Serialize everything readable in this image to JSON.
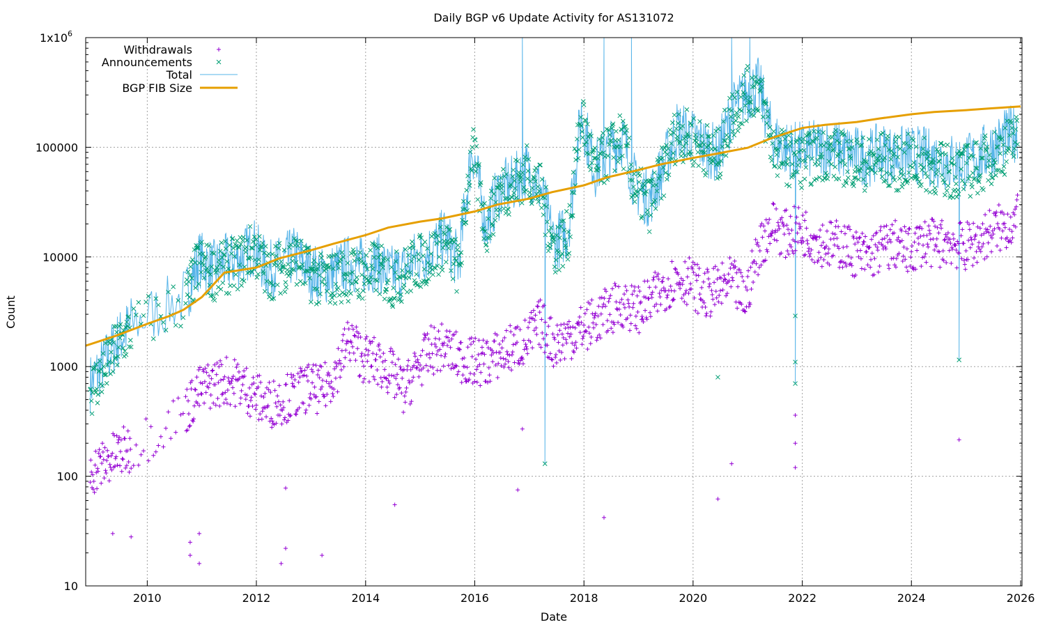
{
  "chart_data": {
    "type": "scatter",
    "title": "Daily BGP v6 Update Activity for AS131072",
    "xlabel": "Date",
    "ylabel": "Count",
    "y_scale": "log",
    "ylim": [
      10,
      1000000
    ],
    "xlim": [
      "2008-11-15",
      "2026-01-10"
    ],
    "grid": true,
    "legend_position": "top-left",
    "x_ticks": [
      "2010",
      "2012",
      "2014",
      "2016",
      "2018",
      "2020",
      "2022",
      "2024",
      "2026"
    ],
    "y_ticks": [
      {
        "value": 10,
        "label": "10"
      },
      {
        "value": 100,
        "label": "100"
      },
      {
        "value": 1000,
        "label": "1000"
      },
      {
        "value": 10000,
        "label": "10000"
      },
      {
        "value": 100000,
        "label": "100000"
      },
      {
        "value": 1000000,
        "label": "1x10",
        "sup": "6"
      }
    ],
    "series": [
      {
        "name": "Withdrawals",
        "style": "points-plus",
        "color": "#9400d3",
        "x": [
          "2008-12",
          "2009-03",
          "2009-06",
          "2009-09",
          "2010-09",
          "2010-12",
          "2011-03",
          "2011-06",
          "2011-09",
          "2011-12",
          "2012-03",
          "2012-06",
          "2012-09",
          "2012-12",
          "2013-03",
          "2013-06",
          "2013-09",
          "2013-12",
          "2014-03",
          "2014-06",
          "2014-09",
          "2014-12",
          "2015-03",
          "2015-06",
          "2015-09",
          "2015-12",
          "2016-03",
          "2016-06",
          "2016-09",
          "2016-12",
          "2017-03",
          "2017-06",
          "2017-09",
          "2017-12",
          "2018-03",
          "2018-06",
          "2018-09",
          "2018-12",
          "2019-03",
          "2019-06",
          "2019-09",
          "2019-12",
          "2020-03",
          "2020-06",
          "2020-09",
          "2020-12",
          "2021-03",
          "2021-06",
          "2021-09",
          "2021-12",
          "2022-03",
          "2022-06",
          "2022-09",
          "2022-12",
          "2023-03",
          "2023-06",
          "2023-09",
          "2023-12",
          "2024-03",
          "2024-06",
          "2024-09",
          "2024-12",
          "2025-03",
          "2025-06",
          "2025-09",
          "2025-12"
        ],
        "values": [
          110,
          130,
          160,
          180,
          400,
          600,
          700,
          750,
          700,
          550,
          450,
          500,
          550,
          650,
          600,
          900,
          1800,
          1200,
          1100,
          900,
          600,
          1000,
          1400,
          1500,
          1200,
          1100,
          1100,
          1300,
          1500,
          1700,
          2500,
          1600,
          1900,
          2200,
          2600,
          3200,
          3800,
          3300,
          3800,
          5200,
          6500,
          6000,
          4500,
          5000,
          6000,
          4000,
          12000,
          20000,
          16000,
          18000,
          15000,
          13000,
          13000,
          11000,
          10000,
          12000,
          13000,
          11000,
          14000,
          13000,
          14000,
          12000,
          14000,
          17000,
          19000,
          22000
        ]
      },
      {
        "name": "Announcements",
        "style": "points-x",
        "color": "#009e73",
        "x": [
          "2008-12",
          "2009-03",
          "2009-06",
          "2009-09",
          "2010-09",
          "2010-12",
          "2011-03",
          "2011-06",
          "2011-09",
          "2011-12",
          "2012-03",
          "2012-06",
          "2012-09",
          "2012-12",
          "2013-03",
          "2013-06",
          "2013-09",
          "2013-12",
          "2014-03",
          "2014-06",
          "2014-09",
          "2014-12",
          "2015-03",
          "2015-06",
          "2015-09",
          "2015-12",
          "2016-03",
          "2016-06",
          "2016-09",
          "2016-12",
          "2017-03",
          "2017-06",
          "2017-09",
          "2017-12",
          "2018-03",
          "2018-06",
          "2018-09",
          "2018-12",
          "2019-03",
          "2019-06",
          "2019-09",
          "2019-12",
          "2020-03",
          "2020-06",
          "2020-09",
          "2020-12",
          "2021-03",
          "2021-06",
          "2021-09",
          "2021-12",
          "2022-03",
          "2022-06",
          "2022-09",
          "2022-12",
          "2023-03",
          "2023-06",
          "2023-09",
          "2023-12",
          "2024-03",
          "2024-06",
          "2024-09",
          "2024-12",
          "2025-03",
          "2025-06",
          "2025-09",
          "2025-12"
        ],
        "values": [
          600,
          900,
          1500,
          2200,
          4000,
          9000,
          7000,
          8000,
          9000,
          12000,
          7000,
          8000,
          10000,
          7000,
          6000,
          6500,
          7000,
          7000,
          8000,
          6000,
          7000,
          9000,
          10000,
          14000,
          7500,
          100000,
          18000,
          40000,
          45000,
          60000,
          40000,
          12000,
          15000,
          200000,
          60000,
          90000,
          120000,
          40000,
          30000,
          60000,
          140000,
          120000,
          100000,
          80000,
          200000,
          300000,
          350000,
          100000,
          80000,
          75000,
          80000,
          90000,
          80000,
          75000,
          70000,
          80000,
          70000,
          75000,
          70000,
          65000,
          60000,
          60000,
          65000,
          80000,
          100000,
          120000
        ]
      },
      {
        "name": "Total",
        "style": "line",
        "color": "#56b4e9",
        "x": [
          "2008-12",
          "2009-03",
          "2009-06",
          "2009-09",
          "2010-09",
          "2010-12",
          "2011-03",
          "2011-06",
          "2011-09",
          "2011-12",
          "2012-03",
          "2012-06",
          "2012-09",
          "2012-12",
          "2013-03",
          "2013-06",
          "2013-09",
          "2013-12",
          "2014-03",
          "2014-06",
          "2014-09",
          "2014-12",
          "2015-03",
          "2015-06",
          "2015-09",
          "2015-12",
          "2016-03",
          "2016-06",
          "2016-09",
          "2016-12",
          "2017-03",
          "2017-06",
          "2017-09",
          "2017-12",
          "2018-03",
          "2018-06",
          "2018-09",
          "2018-12",
          "2019-03",
          "2019-06",
          "2019-09",
          "2019-12",
          "2020-03",
          "2020-06",
          "2020-09",
          "2020-12",
          "2021-03",
          "2021-06",
          "2021-09",
          "2021-12",
          "2022-03",
          "2022-06",
          "2022-09",
          "2022-12",
          "2023-03",
          "2023-06",
          "2023-09",
          "2023-12",
          "2024-03",
          "2024-06",
          "2024-09",
          "2024-12",
          "2025-03",
          "2025-06",
          "2025-09",
          "2025-12"
        ],
        "values": [
          700,
          1050,
          1700,
          2400,
          4400,
          9600,
          7700,
          8800,
          9700,
          12500,
          7500,
          8500,
          10500,
          7700,
          6600,
          7400,
          8800,
          8200,
          9100,
          6900,
          7600,
          10000,
          11400,
          15500,
          8700,
          101000,
          19000,
          41000,
          46000,
          62000,
          42500,
          13600,
          16900,
          202000,
          62600,
          93000,
          123800,
          43300,
          33800,
          65000,
          146000,
          126000,
          104500,
          85000,
          206000,
          304000,
          362000,
          120000,
          96000,
          93000,
          95000,
          103000,
          93000,
          86000,
          80000,
          92000,
          83000,
          86000,
          84000,
          78000,
          74000,
          72000,
          79000,
          97000,
          119000,
          142000
        ]
      },
      {
        "name": "BGP FIB Size",
        "style": "line-thick",
        "color": "#e69f00",
        "x": [
          "2008-11-15",
          "2009-06-01",
          "2010-01-01",
          "2010-06-01",
          "2010-09-01",
          "2011-01-01",
          "2011-06-01",
          "2012-01-01",
          "2012-06-01",
          "2013-01-01",
          "2013-06-01",
          "2014-01-01",
          "2014-06-01",
          "2015-01-01",
          "2015-06-01",
          "2016-01-01",
          "2016-06-01",
          "2017-01-01",
          "2017-06-01",
          "2018-01-01",
          "2018-06-01",
          "2019-01-01",
          "2019-06-01",
          "2020-01-01",
          "2020-06-01",
          "2021-01-01",
          "2021-06-01",
          "2022-01-01",
          "2022-06-01",
          "2023-01-01",
          "2023-06-01",
          "2024-01-01",
          "2024-06-01",
          "2025-01-01",
          "2025-06-01",
          "2026-01-01"
        ],
        "values": [
          1550,
          1900,
          2450,
          2900,
          3300,
          4300,
          7200,
          8000,
          9700,
          11500,
          13200,
          15800,
          18500,
          21000,
          22500,
          26000,
          30000,
          34000,
          39000,
          45000,
          53000,
          62000,
          70000,
          80000,
          87000,
          99000,
          120000,
          150000,
          160000,
          170000,
          183000,
          200000,
          210000,
          218000,
          226000,
          236000
        ]
      }
    ],
    "outliers": {
      "withdrawals": [
        {
          "x": "2009-05",
          "y": 30
        },
        {
          "x": "2009-09",
          "y": 28
        },
        {
          "x": "2010-10",
          "y": 19
        },
        {
          "x": "2010-10",
          "y": 25
        },
        {
          "x": "2010-12",
          "y": 16
        },
        {
          "x": "2010-12",
          "y": 30
        },
        {
          "x": "2012-06",
          "y": 16
        },
        {
          "x": "2012-07",
          "y": 22
        },
        {
          "x": "2012-07",
          "y": 78
        },
        {
          "x": "2013-03",
          "y": 19
        },
        {
          "x": "2014-07",
          "y": 55
        },
        {
          "x": "2016-10",
          "y": 75
        },
        {
          "x": "2016-11",
          "y": 270
        },
        {
          "x": "2018-05",
          "y": 42
        },
        {
          "x": "2020-06",
          "y": 62
        },
        {
          "x": "2020-09",
          "y": 130
        },
        {
          "x": "2021-11",
          "y": 120
        },
        {
          "x": "2021-11",
          "y": 200
        },
        {
          "x": "2021-11",
          "y": 360
        },
        {
          "x": "2024-11",
          "y": 215
        }
      ],
      "announcements": [
        {
          "x": "2017-04",
          "y": 130
        },
        {
          "x": "2020-06",
          "y": 800
        },
        {
          "x": "2021-11",
          "y": 700
        },
        {
          "x": "2021-11",
          "y": 1100
        },
        {
          "x": "2021-11",
          "y": 2900
        },
        {
          "x": "2024-11",
          "y": 1150
        }
      ],
      "total_spikes": [
        {
          "x": "2016-11",
          "y": 1000000
        },
        {
          "x": "2017-04",
          "y": 130
        },
        {
          "x": "2018-05",
          "y": 1000000
        },
        {
          "x": "2018-11",
          "y": 1000000
        },
        {
          "x": "2020-09",
          "y": 1000000
        },
        {
          "x": "2021-01",
          "y": 1000000
        },
        {
          "x": "2021-11",
          "y": 700
        },
        {
          "x": "2024-11",
          "y": 1150
        }
      ]
    }
  }
}
